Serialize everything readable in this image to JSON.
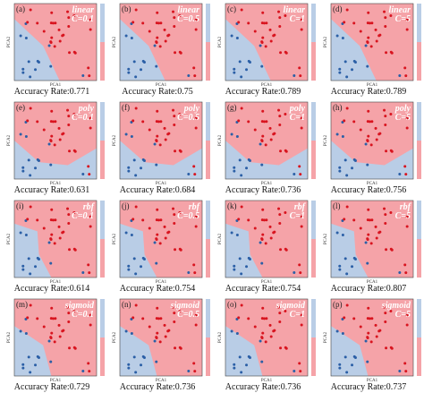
{
  "axis_labels": {
    "x": "PCA1",
    "y": "PCA2"
  },
  "panels": [
    {
      "label": "(a)",
      "kernel": "linear",
      "c": "C=0.1",
      "accuracy": "Accuracy Rate:0.771"
    },
    {
      "label": "(b)",
      "kernel": "linear",
      "c": "C=0.5",
      "accuracy": "Accuracy Rate:0.75"
    },
    {
      "label": "(c)",
      "kernel": "linear",
      "c": "C=1",
      "accuracy": "Accuracy Rate:0.789"
    },
    {
      "label": "(d)",
      "kernel": "linear",
      "c": "C=5",
      "accuracy": "Accuracy Rate:0.789"
    },
    {
      "label": "(e)",
      "kernel": "poly",
      "c": "C=0.1",
      "accuracy": "Accuracy Rate:0.631"
    },
    {
      "label": "(f)",
      "kernel": "poly",
      "c": "C=0.5",
      "accuracy": "Accuracy Rate:0.684"
    },
    {
      "label": "(g)",
      "kernel": "poly",
      "c": "C=1",
      "accuracy": "Accuracy Rate:0.736"
    },
    {
      "label": "(h)",
      "kernel": "poly",
      "c": "C=5",
      "accuracy": "Accuracy Rate:0.756"
    },
    {
      "label": "(i)",
      "kernel": "rbf",
      "c": "C=0.1",
      "accuracy": "Accuracy Rate:0.614"
    },
    {
      "label": "(j)",
      "kernel": "rbf",
      "c": "C=0.5",
      "accuracy": "Accuracy Rate:0.754"
    },
    {
      "label": "(k)",
      "kernel": "rbf",
      "c": "C=1",
      "accuracy": "Accuracy Rate:0.754"
    },
    {
      "label": "(l)",
      "kernel": "rbf",
      "c": "C=5",
      "accuracy": "Accuracy Rate:0.807"
    },
    {
      "label": "(m)",
      "kernel": "sigmoid",
      "c": "C=0.1",
      "accuracy": "Accuracy Rate:0.729"
    },
    {
      "label": "(n)",
      "kernel": "sigmoid",
      "c": "C=0.5",
      "accuracy": "Accuracy Rate:0.736"
    },
    {
      "label": "(o)",
      "kernel": "sigmoid",
      "c": "C=1",
      "accuracy": "Accuracy Rate:0.736"
    },
    {
      "label": "(p)",
      "kernel": "sigmoid",
      "c": "C=5",
      "accuracy": "Accuracy Rate:0.737"
    }
  ]
}
